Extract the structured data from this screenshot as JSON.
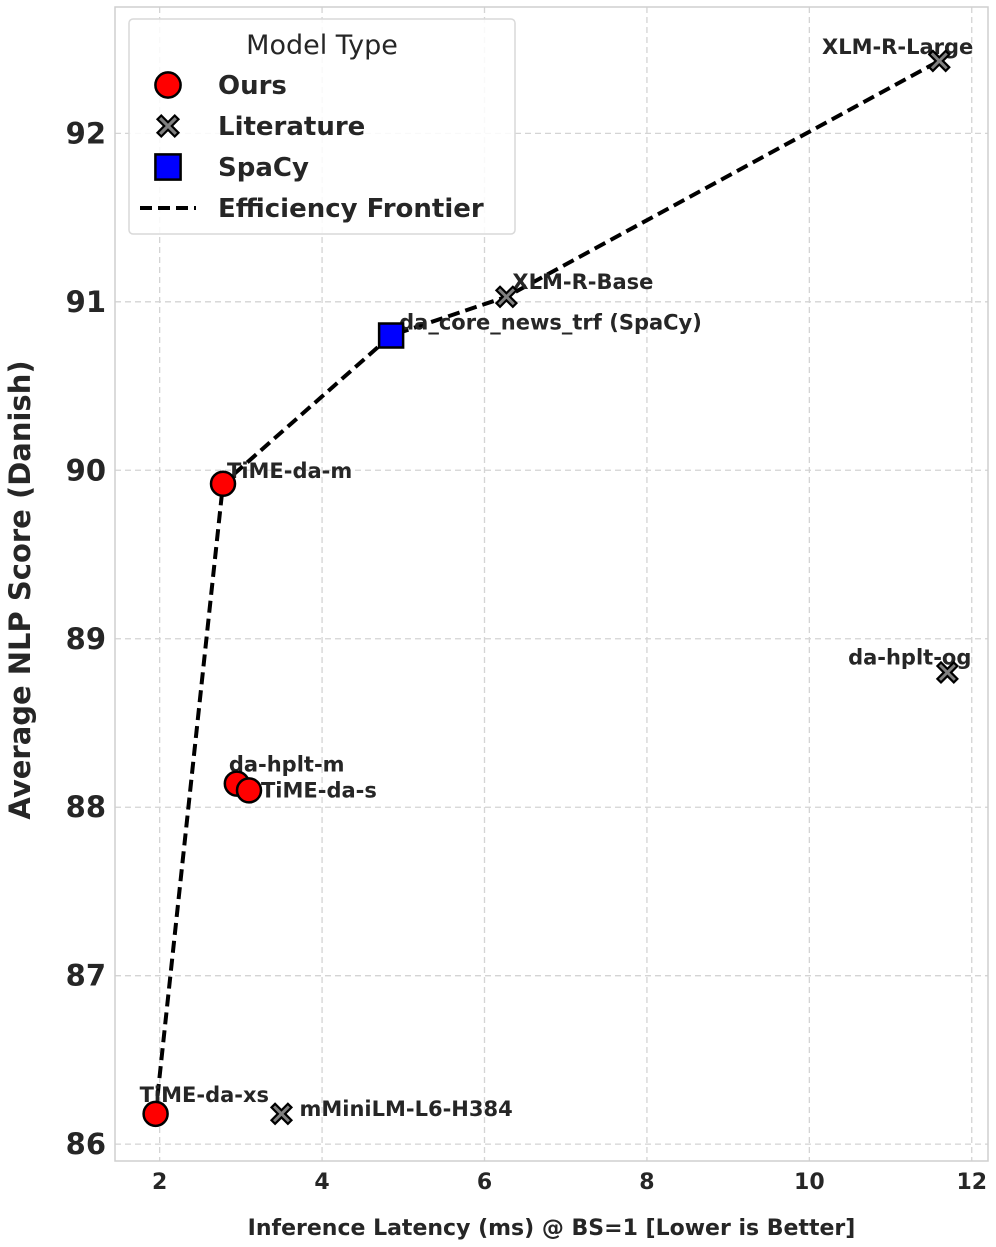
{
  "chart_data": {
    "type": "scatter",
    "xlabel": "Inference Latency (ms) @ BS=1 [Lower is Better]",
    "ylabel": "Average NLP Score (Danish)",
    "xlim": [
      1.45,
      12.2
    ],
    "ylim": [
      85.9,
      92.75
    ],
    "xticks": [
      2,
      4,
      6,
      8,
      10,
      12
    ],
    "yticks": [
      86,
      87,
      88,
      89,
      90,
      91,
      92
    ],
    "grid": true,
    "legend": {
      "title": "Model Type",
      "placement": "top-left",
      "entries": [
        {
          "label": "Ours",
          "marker": "circle",
          "color": "#ff0000"
        },
        {
          "label": "Literature",
          "marker": "x",
          "color": "#808080"
        },
        {
          "label": "SpaCy",
          "marker": "square",
          "color": "#0000ff"
        },
        {
          "label": "Efficiency Frontier",
          "marker": "dashed-line",
          "color": "#000000"
        }
      ]
    },
    "points": [
      {
        "label": "TiME-da-xs",
        "x": 1.95,
        "y": 86.18,
        "group": "Ours",
        "marker": "circle",
        "color": "#ff0000"
      },
      {
        "label": "TiME-da-m",
        "x": 2.78,
        "y": 89.92,
        "group": "Ours",
        "marker": "circle",
        "color": "#ff0000"
      },
      {
        "label": "da-hplt-m",
        "x": 2.95,
        "y": 88.14,
        "group": "Ours",
        "marker": "circle",
        "color": "#ff0000"
      },
      {
        "label": "TiME-da-s",
        "x": 3.1,
        "y": 88.1,
        "group": "Ours",
        "marker": "circle",
        "color": "#ff0000"
      },
      {
        "label": "mMiniLM-L6-H384",
        "x": 3.5,
        "y": 86.18,
        "group": "Literature",
        "marker": "x",
        "color": "#808080"
      },
      {
        "label": "XLM-R-Base",
        "x": 6.27,
        "y": 91.03,
        "group": "Literature",
        "marker": "x",
        "color": "#808080"
      },
      {
        "label": "XLM-R-Large",
        "x": 11.6,
        "y": 92.43,
        "group": "Literature",
        "marker": "x",
        "color": "#808080"
      },
      {
        "label": "da-hplt-og",
        "x": 11.7,
        "y": 88.8,
        "group": "Literature",
        "marker": "x",
        "color": "#808080"
      },
      {
        "label": "da_core_news_trf (SpaCy)",
        "x": 4.85,
        "y": 90.8,
        "group": "SpaCy",
        "marker": "square",
        "color": "#0000ff"
      }
    ],
    "frontier": {
      "x": [
        1.95,
        2.78,
        4.85,
        6.27,
        11.6
      ],
      "y": [
        86.18,
        89.92,
        90.8,
        91.03,
        92.43
      ]
    }
  }
}
